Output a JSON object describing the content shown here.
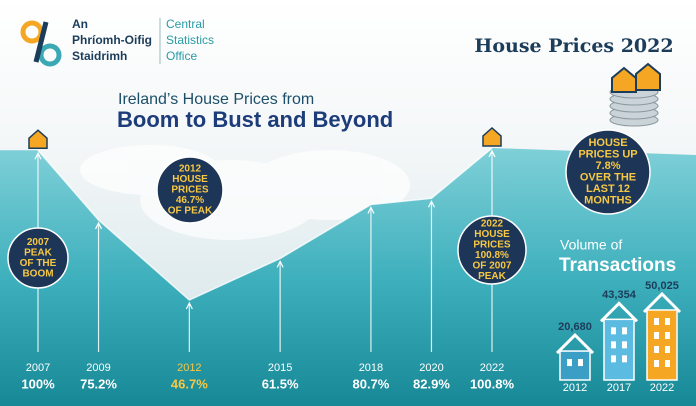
{
  "logo": {
    "irish": [
      "An",
      "Phríomh-Oifig",
      "Staidrimh"
    ],
    "english": [
      "Central",
      "Statistics",
      "Office"
    ]
  },
  "badge": "House Prices 2022",
  "headline": {
    "line1": "Ireland’s House Prices from",
    "line2": "Boom to Bust and Beyond"
  },
  "chart_data": [
    {
      "type": "line",
      "x": [
        2007,
        2009,
        2012,
        2015,
        2018,
        2020,
        2022
      ],
      "values": [
        100,
        75.2,
        46.7,
        61.5,
        80.7,
        82.9,
        100.8
      ],
      "value_labels": [
        "100%",
        "75.2%",
        "46.7%",
        "61.5%",
        "80.7%",
        "82.9%",
        "100.8%"
      ],
      "color": "#ffffff",
      "annotations": [
        {
          "lines": [
            "2007",
            "PEAK",
            "OF THE",
            "BOOM"
          ]
        },
        {
          "lines": [
            "2012",
            "HOUSE",
            "PRICES",
            "46.7%",
            "OF PEAK"
          ]
        },
        {
          "lines": [
            "2022",
            "HOUSE",
            "PRICES",
            "100.8%",
            "OF 2007",
            "PEAK"
          ]
        },
        {
          "lines": [
            "HOUSE",
            "PRICES UP",
            "7.8%",
            "OVER THE",
            "LAST 12",
            "MONTHS"
          ]
        }
      ]
    },
    {
      "type": "bar",
      "title": "Volume of",
      "subtitle": "Transactions",
      "categories": [
        "2012",
        "2017",
        "2022"
      ],
      "values": [
        20680,
        43354,
        50025
      ],
      "value_labels": [
        "20,680",
        "43,354",
        "50,025"
      ],
      "colors": [
        "#3b9ec4",
        "#5bbbe0",
        "#f5a623"
      ]
    }
  ]
}
